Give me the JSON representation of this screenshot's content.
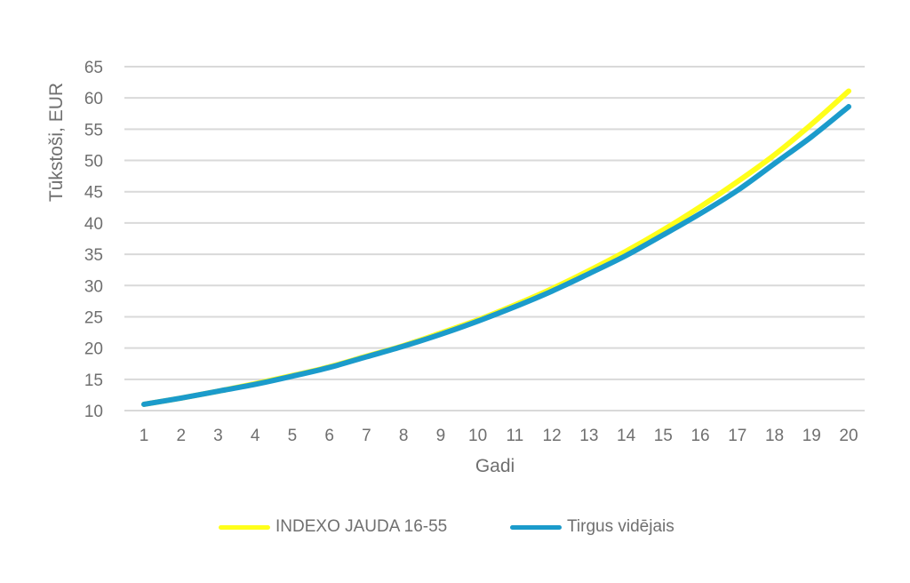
{
  "chart_data": {
    "type": "line",
    "xlabel": "Gadi",
    "ylabel": "Tūkstoši, EUR",
    "ylim": [
      10,
      65
    ],
    "yticks": [
      10,
      15,
      20,
      25,
      30,
      35,
      40,
      45,
      50,
      55,
      60,
      65
    ],
    "x": [
      1,
      2,
      3,
      4,
      5,
      6,
      7,
      8,
      9,
      10,
      11,
      12,
      13,
      14,
      15,
      16,
      17,
      18,
      19,
      20
    ],
    "grid": true,
    "legend_position": "bottom",
    "series": [
      {
        "name": "INDEXO JAUDA 16-55",
        "color": "#FFFF1A",
        "values": [
          11.0,
          12.0,
          13.1,
          14.3,
          15.6,
          17.0,
          18.7,
          20.4,
          22.4,
          24.5,
          26.9,
          29.5,
          32.4,
          35.5,
          38.9,
          42.6,
          46.6,
          50.9,
          55.8,
          61.1
        ]
      },
      {
        "name": "Tirgus vidējais",
        "color": "#1B9BCB",
        "values": [
          11.0,
          12.0,
          13.1,
          14.2,
          15.5,
          16.9,
          18.6,
          20.3,
          22.2,
          24.3,
          26.6,
          29.1,
          31.9,
          34.8,
          38.1,
          41.5,
          45.2,
          49.5,
          53.8,
          58.6
        ]
      }
    ]
  }
}
